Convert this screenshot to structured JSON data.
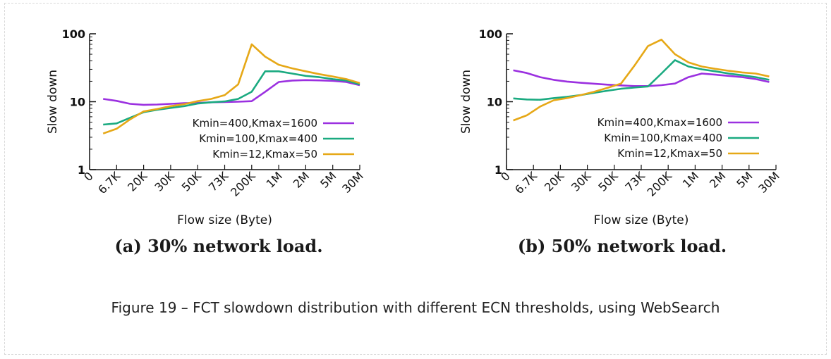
{
  "figure_caption": "Figure 19 – FCT slowdown distribution with different ECN thresholds, using WebSearch",
  "chart_data": [
    {
      "type": "line",
      "panel_caption": "(a) 30% network load.",
      "xlabel": "Flow size (Byte)",
      "ylabel": "Slow down",
      "yscale": "log",
      "ylim": [
        1,
        100
      ],
      "yticks": [
        "1",
        "10",
        "100"
      ],
      "xticks": [
        "0",
        "6.7K",
        "20K",
        "30K",
        "50K",
        "73K",
        "200K",
        "1M",
        "2M",
        "5M",
        "30M"
      ],
      "legend_position": "center-right",
      "series": [
        {
          "name": "Kmin=400,Kmax=1600",
          "color": "#9b30e0",
          "x": [
            0.5,
            1,
            1.5,
            2,
            2.5,
            3,
            3.5,
            4,
            4.5,
            5,
            5.5,
            6,
            6.5,
            7,
            7.5,
            8,
            8.5,
            9,
            9.5,
            10
          ],
          "y": [
            11,
            10.3,
            9.3,
            9.0,
            9.1,
            9.3,
            9.5,
            9.6,
            9.8,
            9.9,
            10,
            10.2,
            14,
            19.5,
            20.5,
            20.8,
            20.6,
            20.3,
            19.5,
            17.5
          ]
        },
        {
          "name": "Kmin=100,Kmax=400",
          "color": "#1aaa80",
          "x": [
            0.5,
            1,
            1.5,
            2,
            2.5,
            3,
            3.5,
            4,
            4.5,
            5,
            5.5,
            6,
            6.5,
            7,
            7.5,
            8,
            8.5,
            9,
            9.5,
            10
          ],
          "y": [
            4.6,
            4.8,
            5.8,
            7.0,
            7.6,
            8.1,
            8.6,
            9.4,
            9.8,
            10.1,
            11,
            14,
            28,
            28,
            26,
            24,
            23,
            21.5,
            20.5,
            18
          ]
        },
        {
          "name": "Kmin=12,Kmax=50",
          "color": "#e6a817",
          "x": [
            0.5,
            1,
            1.5,
            2,
            2.5,
            3,
            3.5,
            4,
            4.5,
            5,
            5.5,
            6,
            6.5,
            7,
            7.5,
            8,
            8.5,
            9,
            9.5,
            10
          ],
          "y": [
            3.4,
            4.0,
            5.5,
            7.2,
            7.8,
            8.6,
            9.2,
            10.2,
            11,
            12.5,
            18,
            70,
            46,
            35,
            31,
            28,
            25.5,
            23.5,
            21.5,
            18.8
          ]
        }
      ]
    },
    {
      "type": "line",
      "panel_caption": "(b) 50% network load.",
      "xlabel": "Flow size (Byte)",
      "ylabel": "Slow down",
      "yscale": "log",
      "ylim": [
        1,
        100
      ],
      "yticks": [
        "1",
        "10",
        "100"
      ],
      "xticks": [
        "0",
        "6.7K",
        "20K",
        "30K",
        "50K",
        "73K",
        "200K",
        "1M",
        "2M",
        "5M",
        "30M"
      ],
      "legend_position": "center-right",
      "series": [
        {
          "name": "Kmin=400,Kmax=1600",
          "color": "#9b30e0",
          "x": [
            0.25,
            0.75,
            1.25,
            1.75,
            2.25,
            2.75,
            3.25,
            3.75,
            4.25,
            4.75,
            5.25,
            5.75,
            6.25,
            6.75,
            7.25,
            7.75,
            8.25,
            8.75,
            9.25,
            9.75
          ],
          "y": [
            29,
            26.5,
            23,
            21,
            19.8,
            19,
            18.4,
            17.8,
            17.4,
            17.0,
            17.0,
            17.5,
            18.5,
            23,
            26,
            25,
            24,
            23,
            21.5,
            19.5
          ]
        },
        {
          "name": "Kmin=100,Kmax=400",
          "color": "#1aaa80",
          "x": [
            0.25,
            0.75,
            1.25,
            1.75,
            2.25,
            2.75,
            3.25,
            3.75,
            4.25,
            4.75,
            5.25,
            5.75,
            6.25,
            6.75,
            7.25,
            7.75,
            8.25,
            8.75,
            9.25,
            9.75
          ],
          "y": [
            11.2,
            10.8,
            10.7,
            11.3,
            11.8,
            12.5,
            13.5,
            14.5,
            15.5,
            16.2,
            16.8,
            26,
            41,
            33,
            30,
            28,
            26,
            24.5,
            23,
            21
          ]
        },
        {
          "name": "Kmin=12,Kmax=50",
          "color": "#e6a817",
          "x": [
            0.25,
            0.75,
            1.25,
            1.75,
            2.25,
            2.75,
            3.25,
            3.75,
            4.25,
            4.75,
            5.25,
            5.75,
            6.25,
            6.75,
            7.25,
            7.75,
            8.25,
            8.75,
            9.25,
            9.75
          ],
          "y": [
            5.3,
            6.3,
            8.5,
            10.5,
            11.3,
            12.5,
            14,
            16,
            18.5,
            34,
            66,
            82,
            50,
            38,
            33,
            30.5,
            28.5,
            27,
            26,
            23.5
          ]
        }
      ]
    }
  ]
}
